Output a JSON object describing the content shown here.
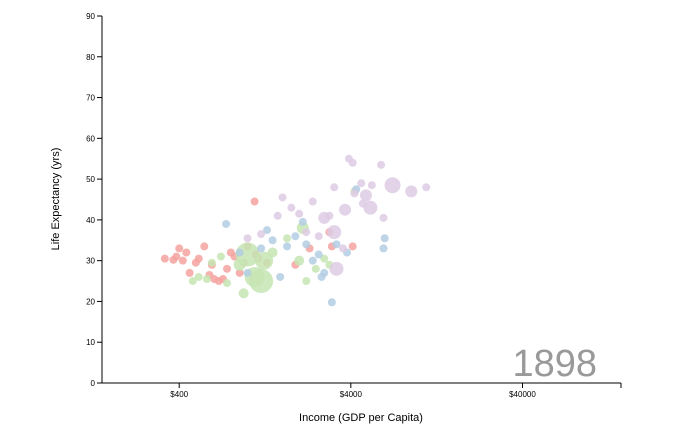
{
  "chart_data": {
    "type": "scatter",
    "xlabel": "Income (GDP per Capita)",
    "ylabel": "Life Expectancy (yrs)",
    "year": "1898",
    "x_scale": "log",
    "xlim": [
      142,
      150000
    ],
    "ylim": [
      0,
      90
    ],
    "x_ticks": [
      {
        "value": 400,
        "label": "$400"
      },
      {
        "value": 4000,
        "label": "$4000"
      },
      {
        "value": 40000,
        "label": "$40000"
      }
    ],
    "y_ticks": [
      {
        "value": 0,
        "label": "0"
      },
      {
        "value": 10,
        "label": "10"
      },
      {
        "value": 20,
        "label": "20"
      },
      {
        "value": 30,
        "label": "30"
      },
      {
        "value": 40,
        "label": "40"
      },
      {
        "value": 50,
        "label": "50"
      },
      {
        "value": 60,
        "label": "60"
      },
      {
        "value": 70,
        "label": "70"
      },
      {
        "value": 80,
        "label": "80"
      },
      {
        "value": 90,
        "label": "90"
      }
    ],
    "grid": false,
    "legend": "none",
    "series": [
      {
        "color": "#f4a3a0",
        "points": [
          {
            "x": 330,
            "y": 30.5,
            "r": 4
          },
          {
            "x": 370,
            "y": 30.2,
            "r": 4
          },
          {
            "x": 385,
            "y": 31,
            "r": 4
          },
          {
            "x": 400,
            "y": 33,
            "r": 4
          },
          {
            "x": 420,
            "y": 30,
            "r": 4
          },
          {
            "x": 440,
            "y": 32,
            "r": 4
          },
          {
            "x": 460,
            "y": 27,
            "r": 4
          },
          {
            "x": 500,
            "y": 29.5,
            "r": 4
          },
          {
            "x": 520,
            "y": 30.5,
            "r": 4
          },
          {
            "x": 560,
            "y": 33.5,
            "r": 4
          },
          {
            "x": 600,
            "y": 26.5,
            "r": 4
          },
          {
            "x": 620,
            "y": 29,
            "r": 4
          },
          {
            "x": 640,
            "y": 25.5,
            "r": 4
          },
          {
            "x": 680,
            "y": 25,
            "r": 4
          },
          {
            "x": 720,
            "y": 25.5,
            "r": 4
          },
          {
            "x": 760,
            "y": 28,
            "r": 4
          },
          {
            "x": 800,
            "y": 32,
            "r": 4
          },
          {
            "x": 840,
            "y": 31,
            "r": 4
          },
          {
            "x": 900,
            "y": 27,
            "r": 4
          },
          {
            "x": 950,
            "y": 29.5,
            "r": 4
          },
          {
            "x": 1000,
            "y": 33.5,
            "r": 4
          },
          {
            "x": 1100,
            "y": 44.5,
            "r": 4
          },
          {
            "x": 1120,
            "y": 31.5,
            "r": 4
          },
          {
            "x": 1150,
            "y": 30.5,
            "r": 4
          },
          {
            "x": 1300,
            "y": 29.5,
            "r": 4
          },
          {
            "x": 1900,
            "y": 29,
            "r": 4
          },
          {
            "x": 2300,
            "y": 33,
            "r": 4
          },
          {
            "x": 3000,
            "y": 37,
            "r": 4
          },
          {
            "x": 3100,
            "y": 33.5,
            "r": 4
          },
          {
            "x": 4100,
            "y": 33.5,
            "r": 4
          }
        ]
      },
      {
        "color": "#c6e5b3",
        "points": [
          {
            "x": 480,
            "y": 25,
            "r": 4
          },
          {
            "x": 520,
            "y": 26,
            "r": 4
          },
          {
            "x": 580,
            "y": 25.5,
            "r": 4
          },
          {
            "x": 620,
            "y": 29.5,
            "r": 4
          },
          {
            "x": 700,
            "y": 31,
            "r": 4
          },
          {
            "x": 760,
            "y": 24.5,
            "r": 4
          },
          {
            "x": 900,
            "y": 29,
            "r": 6
          },
          {
            "x": 1000,
            "y": 31.5,
            "r": 12
          },
          {
            "x": 1100,
            "y": 26,
            "r": 10
          },
          {
            "x": 1200,
            "y": 25,
            "r": 12
          },
          {
            "x": 1250,
            "y": 30,
            "r": 9
          },
          {
            "x": 950,
            "y": 22,
            "r": 5
          },
          {
            "x": 1400,
            "y": 32,
            "r": 5
          },
          {
            "x": 1700,
            "y": 35.5,
            "r": 4
          },
          {
            "x": 2000,
            "y": 30,
            "r": 5
          },
          {
            "x": 2100,
            "y": 38,
            "r": 6
          },
          {
            "x": 2200,
            "y": 25,
            "r": 4
          },
          {
            "x": 2500,
            "y": 28,
            "r": 4
          },
          {
            "x": 2800,
            "y": 30.5,
            "r": 4
          },
          {
            "x": 3000,
            "y": 29,
            "r": 4
          },
          {
            "x": 4200,
            "y": 47,
            "r": 4
          }
        ]
      },
      {
        "color": "#b3cde3",
        "points": [
          {
            "x": 750,
            "y": 39,
            "r": 4
          },
          {
            "x": 900,
            "y": 32,
            "r": 4
          },
          {
            "x": 1000,
            "y": 27,
            "r": 4
          },
          {
            "x": 1200,
            "y": 33,
            "r": 4
          },
          {
            "x": 1300,
            "y": 37.5,
            "r": 4
          },
          {
            "x": 1400,
            "y": 35,
            "r": 4
          },
          {
            "x": 1550,
            "y": 26,
            "r": 4
          },
          {
            "x": 1700,
            "y": 33.5,
            "r": 4
          },
          {
            "x": 1900,
            "y": 36,
            "r": 4
          },
          {
            "x": 2100,
            "y": 39.5,
            "r": 4
          },
          {
            "x": 2200,
            "y": 34,
            "r": 4
          },
          {
            "x": 2400,
            "y": 30,
            "r": 4
          },
          {
            "x": 2600,
            "y": 31.5,
            "r": 4
          },
          {
            "x": 2700,
            "y": 26,
            "r": 4
          },
          {
            "x": 2800,
            "y": 27,
            "r": 4
          },
          {
            "x": 3100,
            "y": 19.8,
            "r": 4
          },
          {
            "x": 3300,
            "y": 34,
            "r": 4
          },
          {
            "x": 3800,
            "y": 32,
            "r": 4
          },
          {
            "x": 4300,
            "y": 47.5,
            "r": 4
          },
          {
            "x": 6300,
            "y": 35.5,
            "r": 4
          },
          {
            "x": 6200,
            "y": 33,
            "r": 4
          }
        ]
      },
      {
        "color": "#decbe4",
        "points": [
          {
            "x": 1000,
            "y": 35.5,
            "r": 4
          },
          {
            "x": 1200,
            "y": 36.5,
            "r": 4
          },
          {
            "x": 1500,
            "y": 41,
            "r": 4
          },
          {
            "x": 1600,
            "y": 45.5,
            "r": 4
          },
          {
            "x": 1800,
            "y": 43,
            "r": 4
          },
          {
            "x": 2000,
            "y": 41.5,
            "r": 4
          },
          {
            "x": 2200,
            "y": 37,
            "r": 4
          },
          {
            "x": 2400,
            "y": 44.5,
            "r": 4
          },
          {
            "x": 2600,
            "y": 36,
            "r": 4
          },
          {
            "x": 2800,
            "y": 40.5,
            "r": 6
          },
          {
            "x": 3000,
            "y": 41,
            "r": 4
          },
          {
            "x": 3200,
            "y": 37,
            "r": 7
          },
          {
            "x": 3200,
            "y": 48,
            "r": 4
          },
          {
            "x": 3300,
            "y": 28,
            "r": 7
          },
          {
            "x": 3600,
            "y": 33,
            "r": 4
          },
          {
            "x": 3700,
            "y": 42.5,
            "r": 6
          },
          {
            "x": 3900,
            "y": 55,
            "r": 4
          },
          {
            "x": 4100,
            "y": 54,
            "r": 4
          },
          {
            "x": 4200,
            "y": 46.5,
            "r": 4
          },
          {
            "x": 4600,
            "y": 49,
            "r": 4
          },
          {
            "x": 4700,
            "y": 44,
            "r": 4
          },
          {
            "x": 4900,
            "y": 46,
            "r": 6
          },
          {
            "x": 5200,
            "y": 43,
            "r": 7
          },
          {
            "x": 5300,
            "y": 48.5,
            "r": 4
          },
          {
            "x": 6000,
            "y": 53.5,
            "r": 4
          },
          {
            "x": 6200,
            "y": 40.5,
            "r": 4
          },
          {
            "x": 7000,
            "y": 48.5,
            "r": 8
          },
          {
            "x": 9000,
            "y": 47,
            "r": 6
          },
          {
            "x": 11000,
            "y": 48,
            "r": 4
          }
        ]
      }
    ]
  }
}
